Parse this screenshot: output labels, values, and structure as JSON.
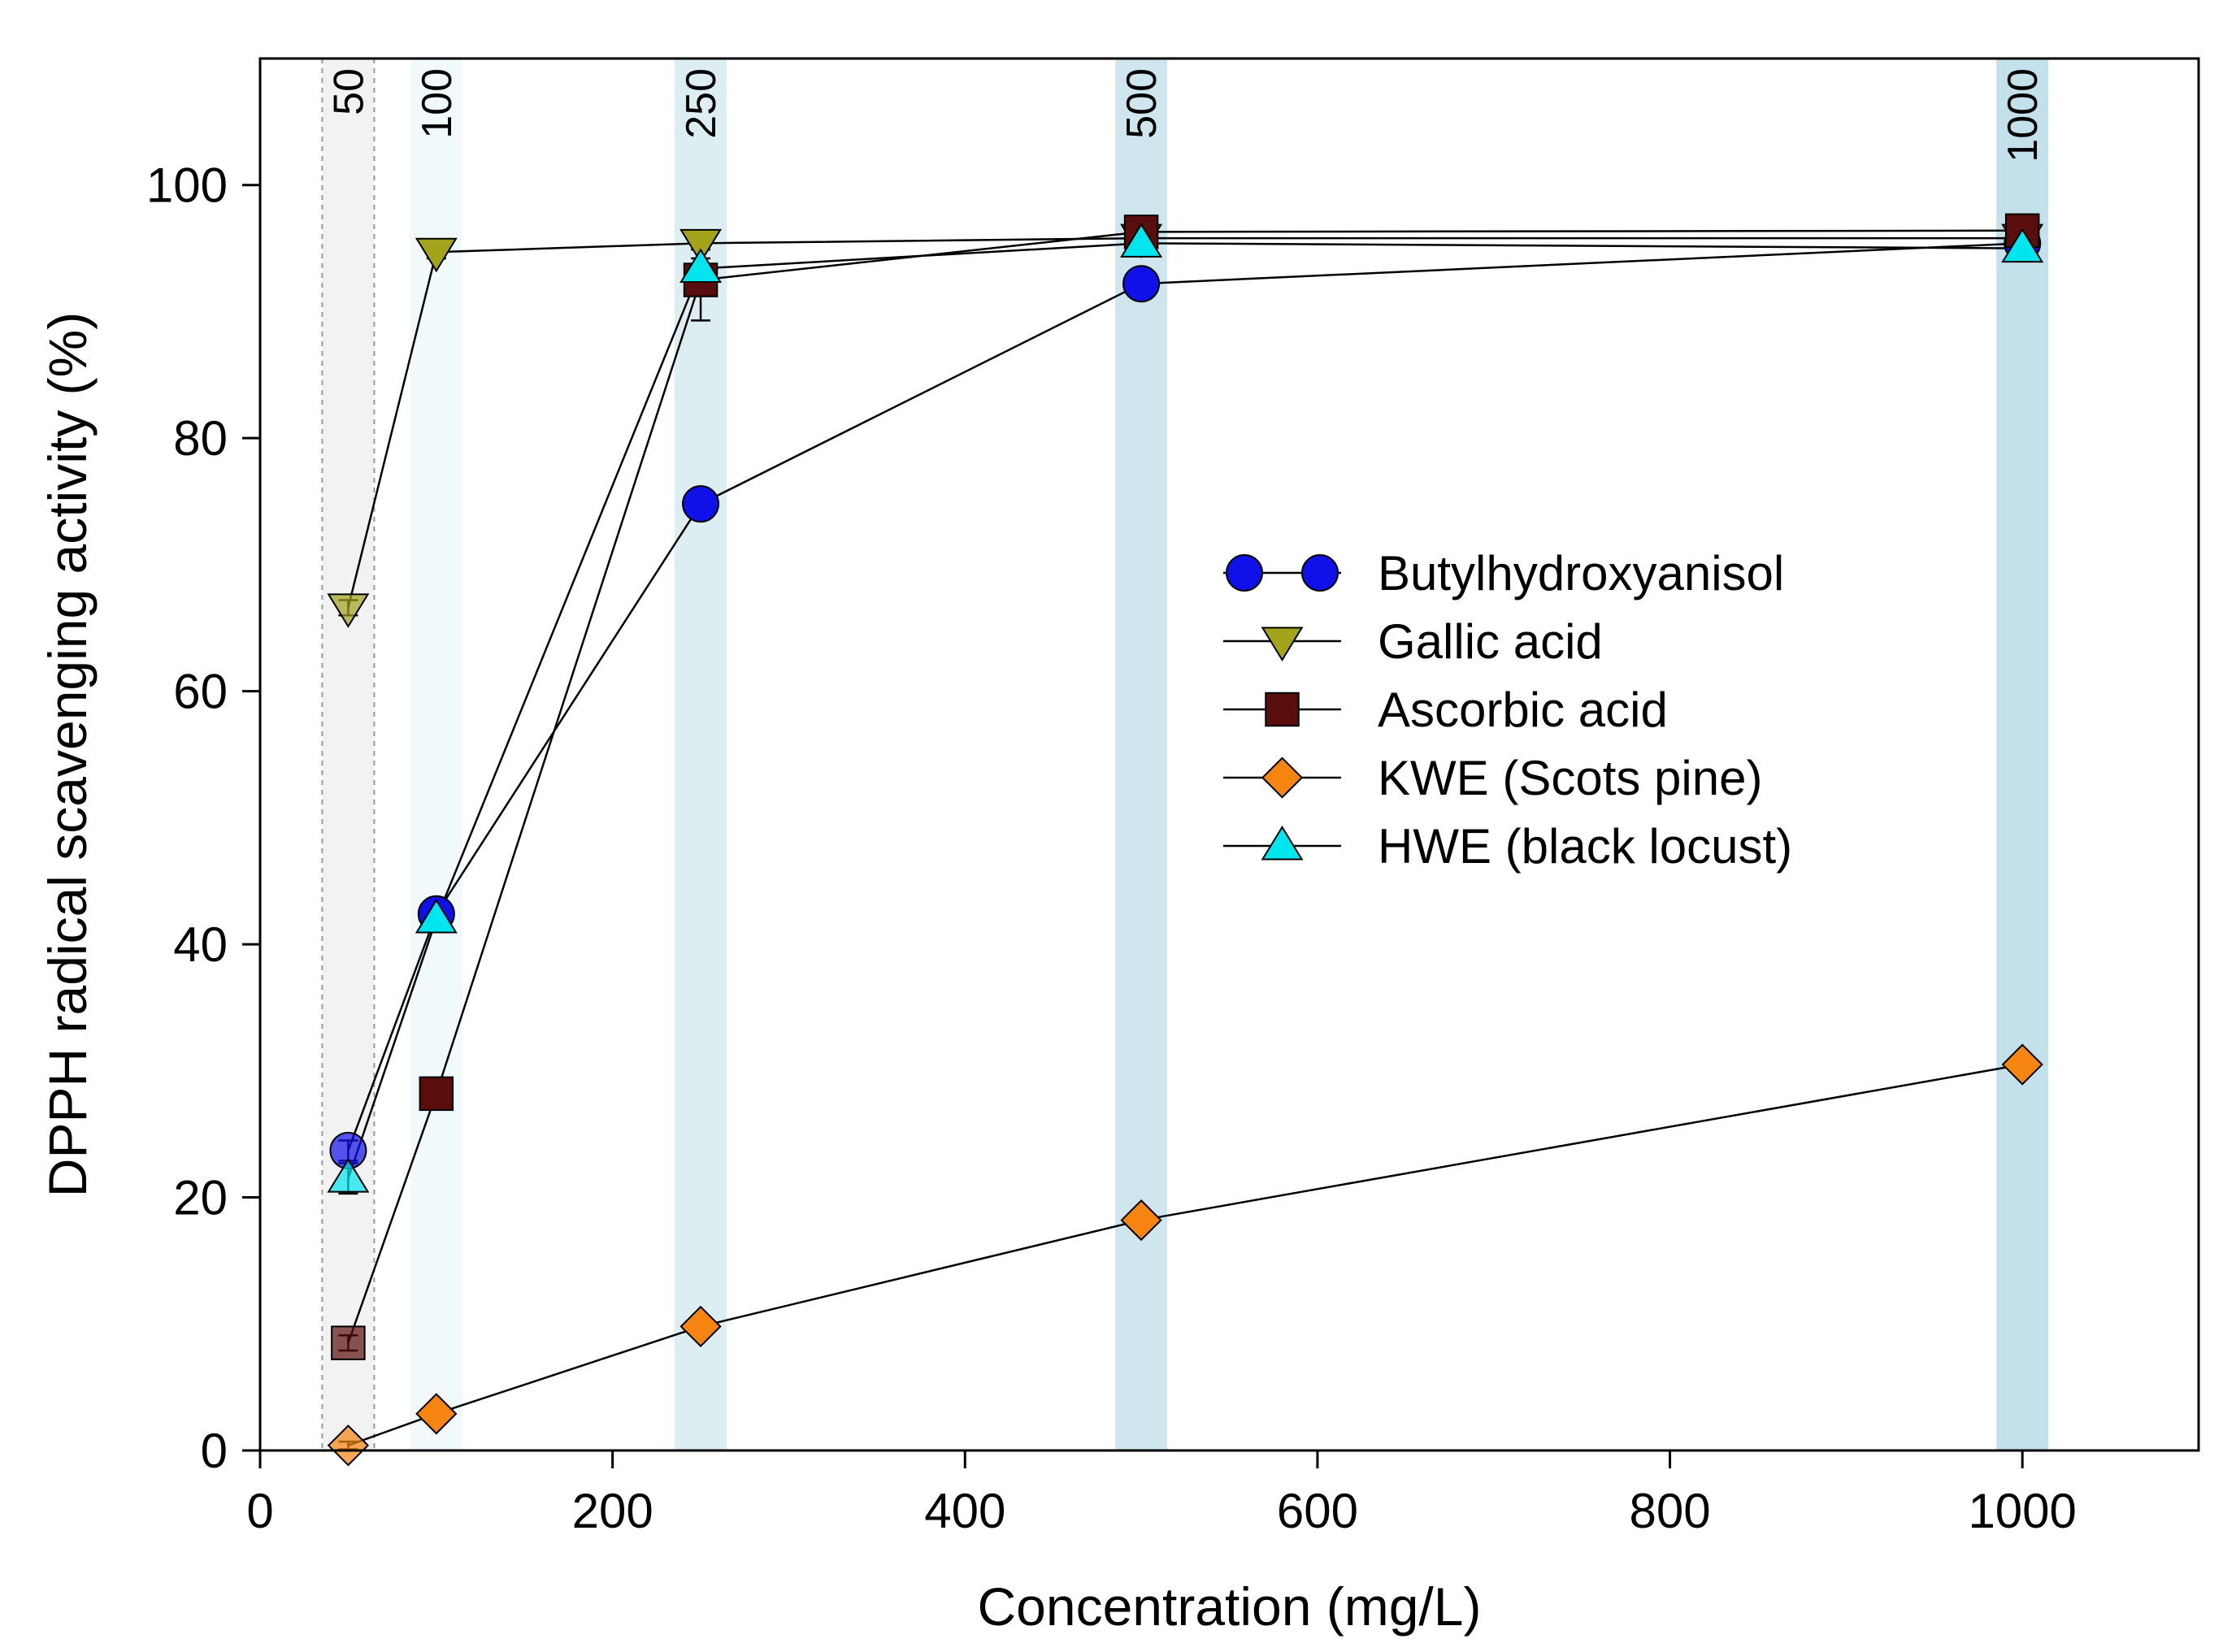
{
  "chart_data": {
    "type": "line",
    "xlabel": "Concentration (mg/L)",
    "ylabel": "DPPH radical scavenging activity (%)",
    "xlim": [
      0,
      1100
    ],
    "ylim": [
      0,
      110
    ],
    "xticks": [
      0,
      200,
      400,
      600,
      800,
      1000
    ],
    "yticks": [
      0,
      20,
      40,
      60,
      80,
      100
    ],
    "grid": false,
    "legend_position": "center-right",
    "highlight_bands": [
      {
        "x": 50,
        "label": "50",
        "color": "#f2f2f2",
        "dashed": true
      },
      {
        "x": 100,
        "label": "100",
        "color": "#f1f9fb",
        "dashed": false
      },
      {
        "x": 250,
        "label": "250",
        "color": "#ddeef3",
        "dashed": false
      },
      {
        "x": 500,
        "label": "500",
        "color": "#cfe6ee",
        "dashed": false
      },
      {
        "x": 1000,
        "label": "1000",
        "color": "#c4e1eb",
        "dashed": false
      }
    ],
    "x": [
      50,
      100,
      250,
      500,
      1000
    ],
    "series": [
      {
        "name": "Butylhydroxyanisol",
        "marker": "circle",
        "color": "#1010e8",
        "values": [
          23.7,
          42.4,
          74.8,
          92.2,
          95.4
        ],
        "errors": [
          0.8,
          0.6,
          0.8,
          0.6,
          0.5
        ]
      },
      {
        "name": "Gallic acid",
        "marker": "triangle-down",
        "color": "#a3a31c",
        "values": [
          66.6,
          94.7,
          95.4,
          95.8,
          95.8
        ],
        "errors": [
          0.6,
          0.5,
          0.5,
          0.5,
          0.5
        ]
      },
      {
        "name": "Ascorbic acid",
        "marker": "square",
        "color": "#5a0d0d",
        "values": [
          8.5,
          28.2,
          92.5,
          96.3,
          96.4
        ],
        "errors": [
          0.6,
          0.6,
          3.2,
          0.5,
          0.5
        ]
      },
      {
        "name": "KWE (Scots pine)",
        "marker": "diamond",
        "color": "#f58410",
        "values": [
          0.4,
          2.9,
          9.8,
          18.2,
          30.5
        ],
        "errors": [
          0.3,
          0.3,
          0.4,
          0.4,
          0.4
        ]
      },
      {
        "name": "HWE (black locust)",
        "marker": "triangle-up",
        "color": "#00e5ee",
        "values": [
          21.5,
          42.0,
          93.4,
          95.4,
          95.0
        ],
        "errors": [
          1.2,
          0.6,
          0.8,
          0.5,
          0.5
        ]
      }
    ]
  }
}
